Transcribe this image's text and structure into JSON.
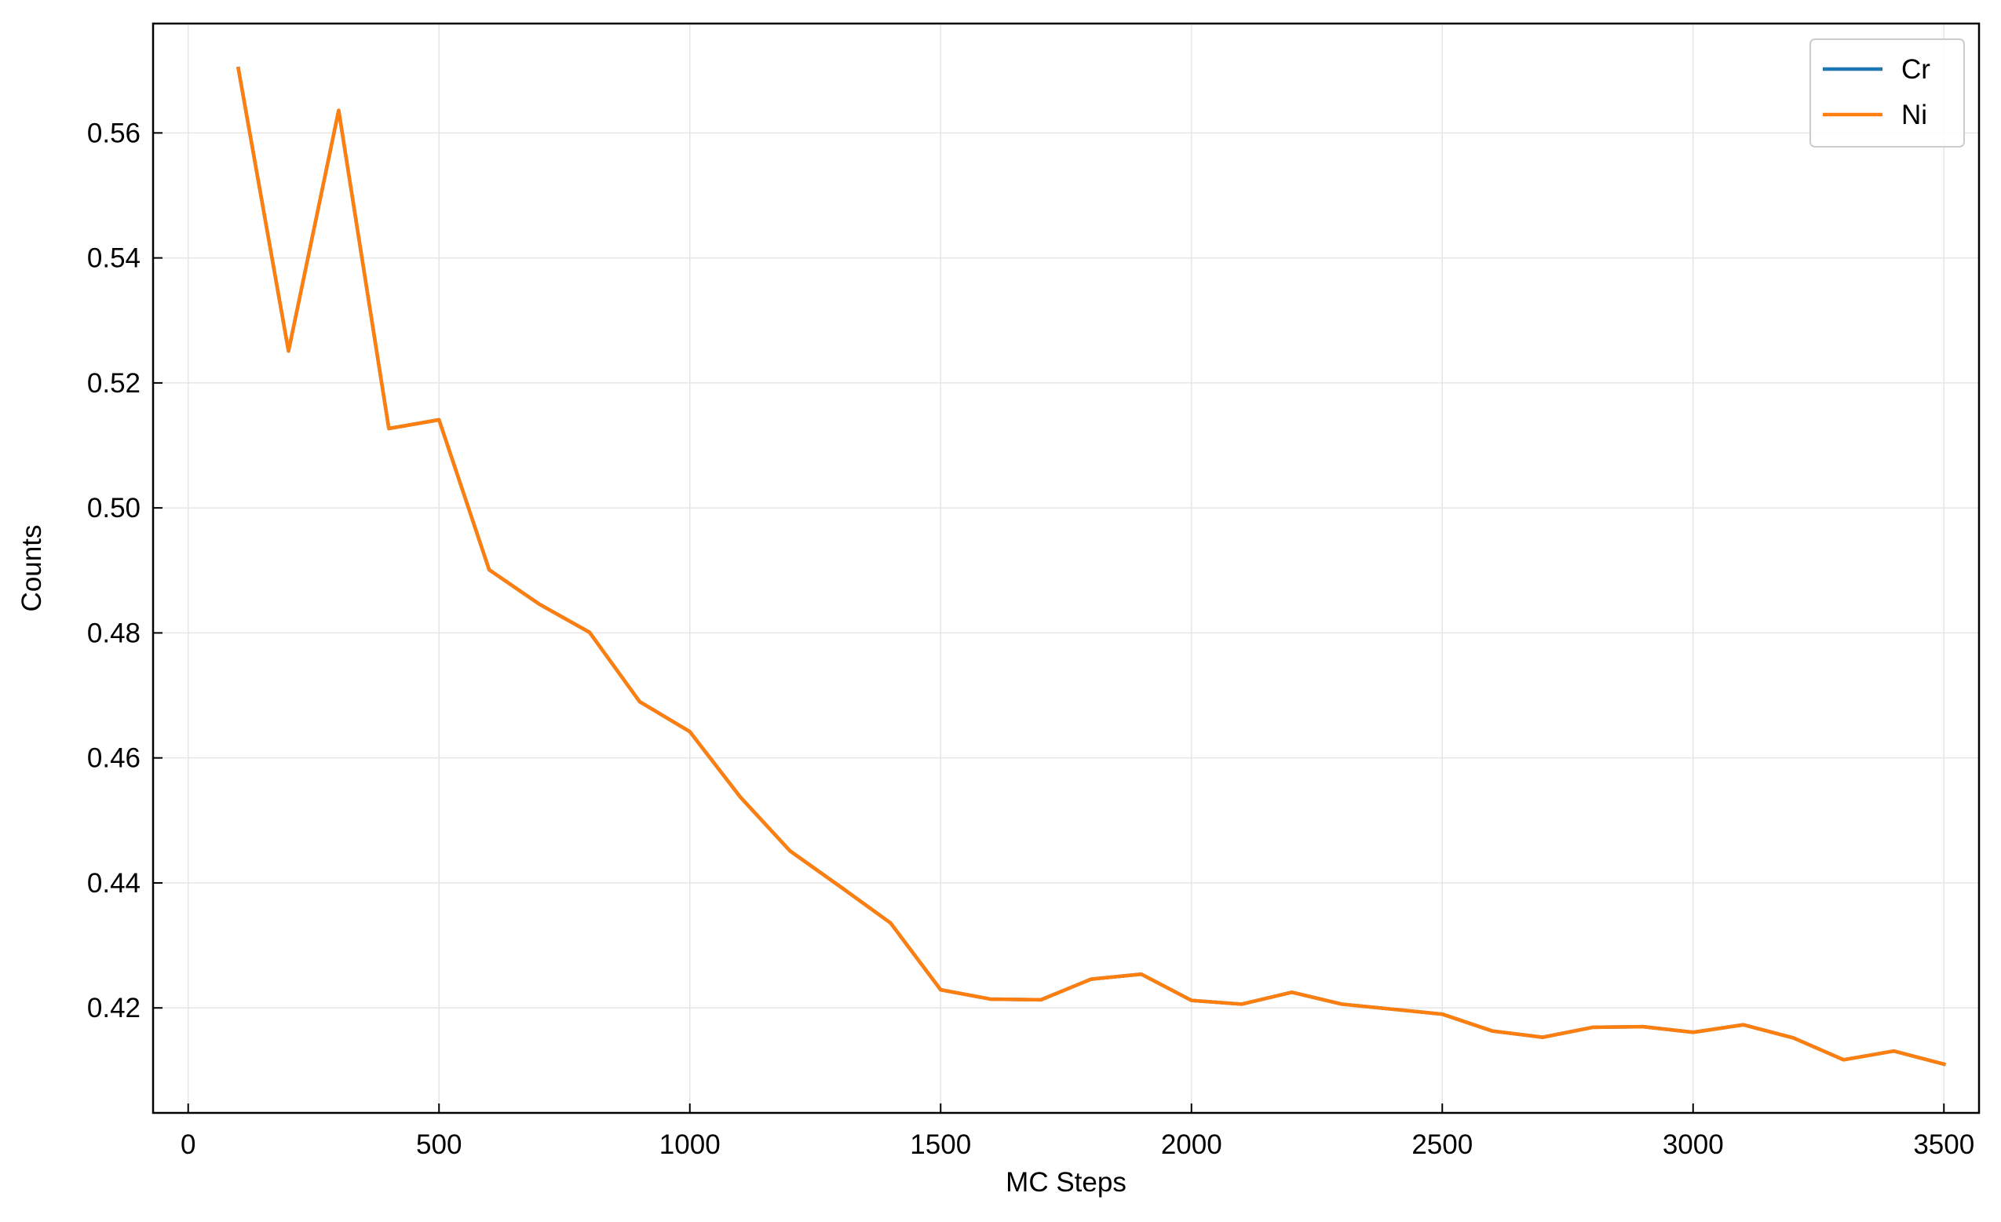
{
  "chart_data": {
    "type": "line",
    "title": "",
    "xlabel": "MC Steps",
    "ylabel": "Counts",
    "xlim": [
      -70,
      3570
    ],
    "ylim": [
      0.4032,
      0.5775
    ],
    "xticks": [
      0,
      500,
      1000,
      1500,
      2000,
      2500,
      3000,
      3500
    ],
    "xtick_labels": [
      "0",
      "500",
      "1000",
      "1500",
      "2000",
      "2500",
      "3000",
      "3500"
    ],
    "yticks": [
      0.42,
      0.44,
      0.46,
      0.48,
      0.5,
      0.52,
      0.54,
      0.56
    ],
    "ytick_labels": [
      "0.42",
      "0.44",
      "0.46",
      "0.48",
      "0.50",
      "0.52",
      "0.54",
      "0.56"
    ],
    "grid": true,
    "legend_position": "top-right",
    "x": [
      100,
      200,
      300,
      400,
      500,
      600,
      700,
      800,
      900,
      1000,
      1100,
      1200,
      1300,
      1400,
      1500,
      1600,
      1700,
      1800,
      1900,
      2000,
      2100,
      2200,
      2300,
      2400,
      2500,
      2600,
      2700,
      2800,
      2900,
      3000,
      3100,
      3200,
      3300,
      3400,
      3500
    ],
    "series": [
      {
        "name": "Cr",
        "color": "#1f77b4",
        "values": [
          0.5703,
          0.5251,
          0.5636,
          0.5127,
          0.5141,
          0.4901,
          0.4846,
          0.4801,
          0.469,
          0.4642,
          0.4538,
          0.4451,
          0.4394,
          0.4336,
          0.4229,
          0.4214,
          0.4213,
          0.4246,
          0.4254,
          0.4212,
          0.4206,
          0.4225,
          0.4206,
          0.4198,
          0.419,
          0.4163,
          0.4153,
          0.4169,
          0.417,
          0.4161,
          0.4173,
          0.4152,
          0.4117,
          0.4131,
          0.411
        ]
      },
      {
        "name": "Ni",
        "color": "#ff7f0e",
        "values": [
          0.5703,
          0.5251,
          0.5636,
          0.5127,
          0.5141,
          0.4901,
          0.4846,
          0.4801,
          0.469,
          0.4642,
          0.4538,
          0.4451,
          0.4394,
          0.4336,
          0.4229,
          0.4214,
          0.4213,
          0.4246,
          0.4254,
          0.4212,
          0.4206,
          0.4225,
          0.4206,
          0.4198,
          0.419,
          0.4163,
          0.4153,
          0.4169,
          0.417,
          0.4161,
          0.4173,
          0.4152,
          0.4117,
          0.4131,
          0.411
        ]
      }
    ]
  }
}
